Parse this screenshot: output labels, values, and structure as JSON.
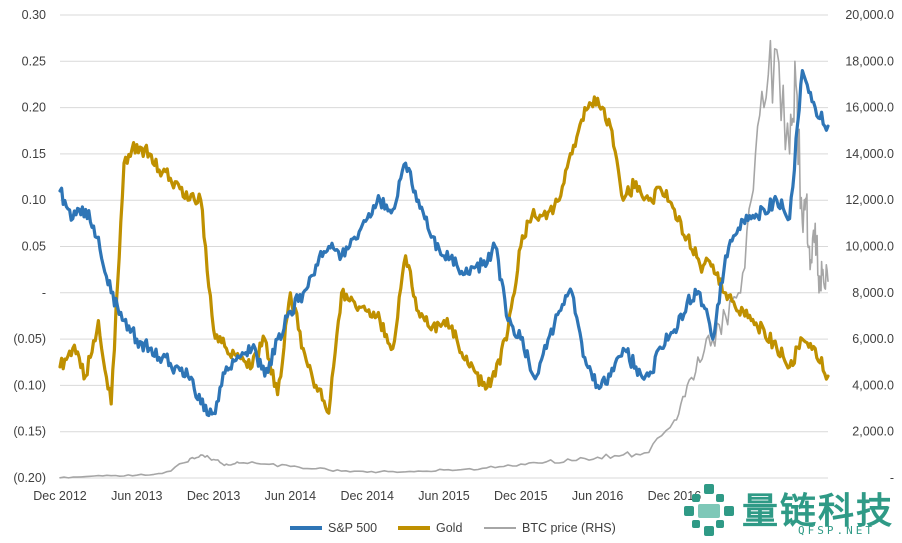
{
  "chart_data": {
    "type": "line",
    "title": "",
    "x": [
      "Dec 2012",
      "Jun 2013",
      "Dec 2013",
      "Jun 2014",
      "Dec 2014",
      "Jun 2015",
      "Dec 2015",
      "Jun 2016",
      "Dec 2016"
    ],
    "x_range": [
      0,
      60
    ],
    "ylim": [
      -0.2,
      0.3
    ],
    "y_ticks": [
      0.3,
      0.25,
      0.2,
      0.15,
      0.1,
      0.05,
      0.0,
      -0.05,
      -0.1,
      -0.15,
      -0.2
    ],
    "y_tick_labels": [
      "0.30",
      "0.25",
      "0.20",
      "0.15",
      "0.10",
      "0.05",
      "-",
      "(0.05)",
      "(0.10)",
      "(0.15)",
      "(0.20)"
    ],
    "y2lim": [
      0,
      20000
    ],
    "y2_ticks": [
      20000,
      18000,
      16000,
      14000,
      12000,
      10000,
      8000,
      6000,
      4000,
      2000,
      0
    ],
    "y2_tick_labels": [
      "20,000.0",
      "18,000.0",
      "16,000.0",
      "14,000.0",
      "12,000.0",
      "10,000.0",
      "8,000.0",
      "6,000.0",
      "4,000.0",
      "2,000.0",
      "-"
    ],
    "grid": true,
    "legend_position": "bottom",
    "series": [
      {
        "name": "S&P 500",
        "axis": "left",
        "color": "#2e75b6",
        "x": [
          0,
          1,
          2,
          3,
          4,
          5,
          6,
          7,
          8,
          9,
          10,
          11,
          12,
          13,
          14,
          15,
          16,
          17,
          18,
          19,
          20,
          21,
          22,
          23,
          24,
          25,
          26,
          27,
          28,
          29,
          30,
          31,
          32,
          33,
          34,
          35,
          36,
          37,
          38,
          39,
          40,
          41,
          42,
          43,
          44,
          45,
          46,
          47,
          48,
          49,
          50,
          51,
          52,
          53,
          54,
          55,
          56,
          57,
          58,
          59,
          60
        ],
        "values": [
          0.11,
          0.08,
          0.09,
          0.06,
          0.0,
          -0.03,
          -0.05,
          -0.06,
          -0.07,
          -0.08,
          -0.09,
          -0.12,
          -0.13,
          -0.08,
          -0.07,
          -0.06,
          -0.09,
          -0.05,
          -0.02,
          0.0,
          0.03,
          0.05,
          0.04,
          0.06,
          0.08,
          0.1,
          0.09,
          0.14,
          0.1,
          0.06,
          0.04,
          0.03,
          0.02,
          0.03,
          0.05,
          -0.03,
          -0.05,
          -0.09,
          -0.06,
          -0.02,
          0.0,
          -0.07,
          -0.1,
          -0.09,
          -0.06,
          -0.08,
          -0.09,
          -0.06,
          -0.04,
          -0.01,
          0.0,
          -0.05,
          0.04,
          0.07,
          0.08,
          0.09,
          0.1,
          0.08,
          0.24,
          0.2,
          0.18
        ]
      },
      {
        "name": "Gold",
        "axis": "left",
        "color": "#bf9000",
        "x": [
          0,
          1,
          2,
          3,
          4,
          5,
          6,
          7,
          8,
          9,
          10,
          11,
          12,
          13,
          14,
          15,
          16,
          17,
          18,
          19,
          20,
          21,
          22,
          23,
          24,
          25,
          26,
          27,
          28,
          29,
          30,
          31,
          32,
          33,
          34,
          35,
          36,
          37,
          38,
          39,
          40,
          41,
          42,
          43,
          44,
          45,
          46,
          47,
          48,
          49,
          50,
          51,
          52,
          53,
          54,
          55,
          56,
          57,
          58,
          59,
          60
        ],
        "values": [
          -0.08,
          -0.06,
          -0.09,
          -0.03,
          -0.12,
          0.14,
          0.16,
          0.15,
          0.13,
          0.12,
          0.1,
          0.1,
          -0.04,
          -0.06,
          -0.07,
          -0.08,
          -0.05,
          -0.11,
          0.0,
          -0.06,
          -0.1,
          -0.13,
          0.0,
          -0.01,
          -0.02,
          -0.03,
          -0.06,
          0.04,
          -0.02,
          -0.04,
          -0.03,
          -0.05,
          -0.08,
          -0.1,
          -0.09,
          -0.04,
          0.05,
          0.09,
          0.08,
          0.1,
          0.15,
          0.2,
          0.21,
          0.18,
          0.1,
          0.12,
          0.1,
          0.11,
          0.09,
          0.06,
          0.03,
          0.03,
          0.0,
          -0.02,
          -0.03,
          -0.04,
          -0.06,
          -0.08,
          -0.05,
          -0.06,
          -0.09
        ]
      },
      {
        "name": "BTC price (RHS)",
        "axis": "right",
        "color": "#a6a6a6",
        "x": [
          0,
          2,
          4,
          6,
          8,
          10,
          11,
          12,
          13,
          14,
          16,
          18,
          20,
          22,
          24,
          26,
          28,
          30,
          32,
          34,
          36,
          38,
          40,
          42,
          44,
          46,
          48,
          49,
          50,
          51,
          52,
          53,
          54,
          55,
          56,
          57,
          57.5,
          58,
          58.3,
          58.6,
          59,
          59.3,
          59.6,
          60
        ],
        "values": [
          10,
          60,
          100,
          120,
          200,
          700,
          1000,
          800,
          600,
          650,
          600,
          500,
          400,
          300,
          250,
          280,
          300,
          350,
          400,
          450,
          600,
          700,
          750,
          900,
          1000,
          1100,
          2500,
          4000,
          5000,
          6000,
          7000,
          8000,
          12000,
          16000,
          18500,
          14000,
          17000,
          11000,
          12000,
          9000,
          11000,
          8000,
          9000,
          8500
        ]
      }
    ]
  },
  "legend": {
    "sp500": "S&P 500",
    "gold": "Gold",
    "btc": "BTC price (RHS)"
  },
  "watermark": {
    "title": "量链科技",
    "subtitle": "QFSP.NET"
  }
}
